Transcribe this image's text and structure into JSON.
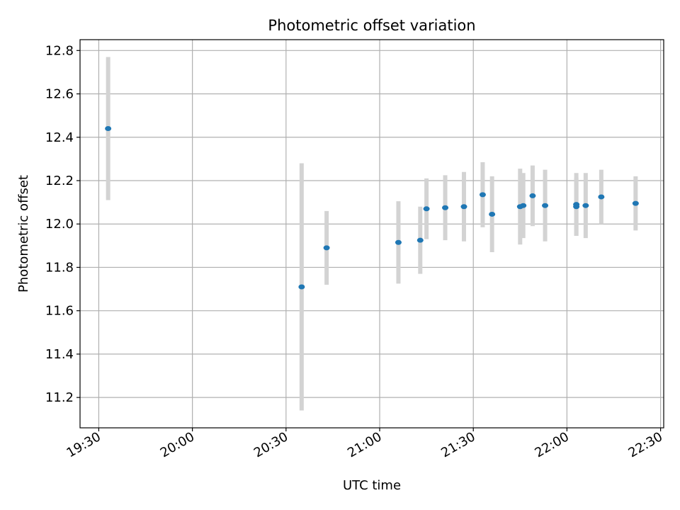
{
  "chart_data": {
    "type": "scatter",
    "title": "Photometric offset variation",
    "xlabel": "UTC time",
    "ylabel": "Photometric offset",
    "x_ticks": [
      "19:30",
      "20:00",
      "20:30",
      "21:00",
      "21:30",
      "22:00",
      "22:30"
    ],
    "y_ticks": [
      "11.2",
      "11.4",
      "11.6",
      "11.8",
      "12.0",
      "12.2",
      "12.4",
      "12.6",
      "12.8"
    ],
    "xlim": [
      "19:24",
      "22:31"
    ],
    "ylim": [
      11.06,
      12.85
    ],
    "grid": true,
    "colors": {
      "points": "#1f77b4",
      "errorbars": "#d3d3d3"
    },
    "points": [
      {
        "time": "19:33",
        "value": 12.44,
        "error": 0.33
      },
      {
        "time": "20:35",
        "value": 11.71,
        "error": 0.57
      },
      {
        "time": "20:43",
        "value": 11.89,
        "error": 0.17
      },
      {
        "time": "21:06",
        "value": 11.915,
        "error": 0.19
      },
      {
        "time": "21:13",
        "value": 11.925,
        "error": 0.155
      },
      {
        "time": "21:15",
        "value": 12.07,
        "error": 0.14
      },
      {
        "time": "21:21",
        "value": 12.075,
        "error": 0.15
      },
      {
        "time": "21:27",
        "value": 12.08,
        "error": 0.16
      },
      {
        "time": "21:33",
        "value": 12.135,
        "error": 0.15
      },
      {
        "time": "21:36",
        "value": 12.045,
        "error": 0.175
      },
      {
        "time": "21:45",
        "value": 12.08,
        "error": 0.175
      },
      {
        "time": "21:46",
        "value": 12.085,
        "error": 0.15
      },
      {
        "time": "21:49",
        "value": 12.13,
        "error": 0.14
      },
      {
        "time": "21:53",
        "value": 12.085,
        "error": 0.165
      },
      {
        "time": "22:03",
        "value": 12.09,
        "error": 0.145
      },
      {
        "time": "22:03",
        "value": 12.08,
        "error": 0.135
      },
      {
        "time": "22:06",
        "value": 12.085,
        "error": 0.15
      },
      {
        "time": "22:11",
        "value": 12.125,
        "error": 0.125
      },
      {
        "time": "22:22",
        "value": 12.095,
        "error": 0.125
      }
    ]
  }
}
